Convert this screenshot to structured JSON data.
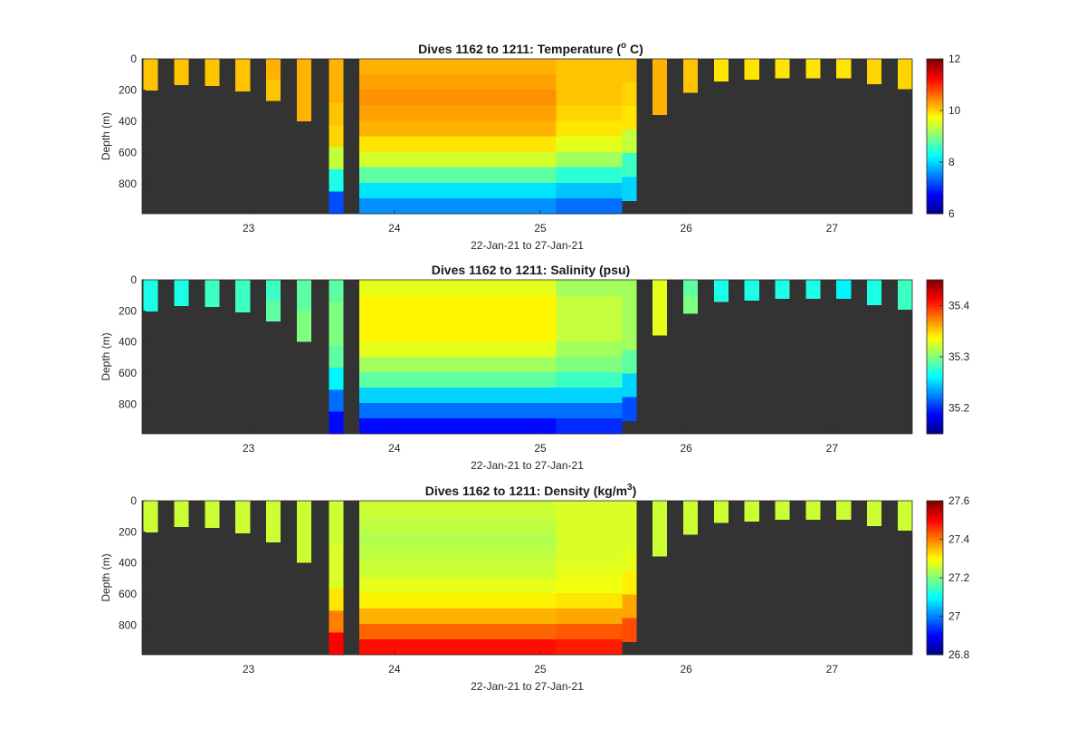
{
  "chart_data": [
    {
      "type": "heatmap",
      "title_main": "Dives 1162 to 1211: Temperature (",
      "title_sup": "o",
      "title_tail": " C)",
      "xlabel": "22-Jan-21 to 27-Jan-21",
      "ylabel": "Depth (m)",
      "xlim": [
        22.27,
        27.55
      ],
      "ylim": [
        0,
        990
      ],
      "y_reversed": true,
      "x_ticks": [
        23,
        24,
        25,
        26,
        27
      ],
      "y_ticks": [
        0,
        200,
        400,
        600,
        800
      ],
      "background": "#333333",
      "colormap": "jet",
      "clim": [
        6,
        12
      ],
      "colorbar_ticks": [
        6,
        8,
        10,
        12
      ],
      "columns": [
        {
          "x": [
            22.28,
            22.38
          ],
          "depth": 200,
          "v": [
            10.1,
            10.1
          ]
        },
        {
          "x": [
            22.49,
            22.59
          ],
          "depth": 165,
          "v": [
            10.1,
            10.1
          ]
        },
        {
          "x": [
            22.7,
            22.8
          ],
          "depth": 170,
          "v": [
            10.1,
            10.1
          ]
        },
        {
          "x": [
            22.91,
            23.01
          ],
          "depth": 205,
          "v": [
            10.1,
            10.1
          ]
        },
        {
          "x": [
            23.12,
            23.22
          ],
          "depth": 265,
          "v": [
            10.2,
            10.1
          ]
        },
        {
          "x": [
            23.33,
            23.43
          ],
          "depth": 395,
          "v": [
            10.2,
            10.2
          ]
        },
        {
          "x": [
            23.55,
            23.65
          ],
          "depth": 990,
          "v": [
            10.2,
            10.2,
            10.1,
            10.0,
            9.4,
            8.4,
            7.2
          ]
        },
        {
          "x": [
            23.76,
            25.11
          ],
          "depth": 990,
          "v": [
            10.2,
            10.3,
            10.4,
            10.3,
            10.2,
            9.9,
            9.5,
            8.8,
            8.1,
            7.6
          ]
        },
        {
          "x": [
            25.11,
            25.56
          ],
          "depth": 990,
          "v": [
            10.1,
            10.1,
            10.1,
            10.0,
            9.9,
            9.6,
            9.2,
            8.5,
            7.9,
            7.4
          ]
        },
        {
          "x": [
            25.56,
            25.66
          ],
          "depth": 905,
          "v": [
            10.1,
            10.0,
            9.9,
            9.4,
            8.6,
            8.0
          ]
        },
        {
          "x": [
            25.77,
            25.87
          ],
          "depth": 355,
          "v": [
            10.2,
            10.2
          ]
        },
        {
          "x": [
            25.98,
            26.08
          ],
          "depth": 215,
          "v": [
            10.1,
            10.1
          ]
        },
        {
          "x": [
            26.19,
            26.29
          ],
          "depth": 140,
          "v": [
            9.9,
            9.9
          ]
        },
        {
          "x": [
            26.4,
            26.5
          ],
          "depth": 130,
          "v": [
            9.9,
            9.9
          ]
        },
        {
          "x": [
            26.61,
            26.71
          ],
          "depth": 120,
          "v": [
            9.9,
            9.9
          ]
        },
        {
          "x": [
            26.82,
            26.92
          ],
          "depth": 120,
          "v": [
            9.9,
            9.9
          ]
        },
        {
          "x": [
            27.03,
            27.13
          ],
          "depth": 120,
          "v": [
            9.9,
            9.9
          ]
        },
        {
          "x": [
            27.24,
            27.34
          ],
          "depth": 160,
          "v": [
            10.0,
            10.0
          ]
        },
        {
          "x": [
            27.45,
            27.55
          ],
          "depth": 190,
          "v": [
            10.0,
            10.0
          ]
        }
      ]
    },
    {
      "type": "heatmap",
      "title_main": "Dives 1162 to 1211: Salinity (psu)",
      "title_sup": "",
      "title_tail": "",
      "xlabel": "22-Jan-21 to 27-Jan-21",
      "ylabel": "Depth (m)",
      "xlim": [
        22.27,
        27.55
      ],
      "ylim": [
        0,
        990
      ],
      "y_reversed": true,
      "x_ticks": [
        23,
        24,
        25,
        26,
        27
      ],
      "y_ticks": [
        0,
        200,
        400,
        600,
        800
      ],
      "background": "#333333",
      "colormap": "jet",
      "clim": [
        35.15,
        35.45
      ],
      "colorbar_ticks": [
        35.2,
        35.3,
        35.4
      ],
      "columns": [
        {
          "x": [
            22.28,
            22.38
          ],
          "depth": 200,
          "v": [
            35.27,
            35.27
          ]
        },
        {
          "x": [
            22.49,
            22.59
          ],
          "depth": 165,
          "v": [
            35.27,
            35.27
          ]
        },
        {
          "x": [
            22.7,
            22.8
          ],
          "depth": 170,
          "v": [
            35.28,
            35.28
          ]
        },
        {
          "x": [
            22.91,
            23.01
          ],
          "depth": 205,
          "v": [
            35.28,
            35.28
          ]
        },
        {
          "x": [
            23.12,
            23.22
          ],
          "depth": 265,
          "v": [
            35.28,
            35.29
          ]
        },
        {
          "x": [
            23.33,
            23.43
          ],
          "depth": 395,
          "v": [
            35.29,
            35.3
          ]
        },
        {
          "x": [
            23.55,
            23.65
          ],
          "depth": 990,
          "v": [
            35.29,
            35.3,
            35.3,
            35.29,
            35.26,
            35.22,
            35.19
          ]
        },
        {
          "x": [
            23.76,
            25.11
          ],
          "depth": 990,
          "v": [
            35.33,
            35.34,
            35.34,
            35.34,
            35.33,
            35.31,
            35.29,
            35.25,
            35.22,
            35.19
          ]
        },
        {
          "x": [
            25.11,
            25.56
          ],
          "depth": 990,
          "v": [
            35.31,
            35.32,
            35.32,
            35.32,
            35.31,
            35.3,
            35.28,
            35.25,
            35.22,
            35.2
          ]
        },
        {
          "x": [
            25.56,
            25.66
          ],
          "depth": 905,
          "v": [
            35.31,
            35.31,
            35.31,
            35.29,
            35.25,
            35.21
          ]
        },
        {
          "x": [
            25.77,
            25.87
          ],
          "depth": 355,
          "v": [
            35.33,
            35.33
          ]
        },
        {
          "x": [
            25.98,
            26.08
          ],
          "depth": 215,
          "v": [
            35.29,
            35.3
          ]
        },
        {
          "x": [
            26.19,
            26.29
          ],
          "depth": 140,
          "v": [
            35.27,
            35.27
          ]
        },
        {
          "x": [
            26.4,
            26.5
          ],
          "depth": 130,
          "v": [
            35.27,
            35.27
          ]
        },
        {
          "x": [
            26.61,
            26.71
          ],
          "depth": 120,
          "v": [
            35.27,
            35.27
          ]
        },
        {
          "x": [
            26.82,
            26.92
          ],
          "depth": 120,
          "v": [
            35.27,
            35.27
          ]
        },
        {
          "x": [
            27.03,
            27.13
          ],
          "depth": 120,
          "v": [
            35.26,
            35.26
          ]
        },
        {
          "x": [
            27.24,
            27.34
          ],
          "depth": 160,
          "v": [
            35.27,
            35.27
          ]
        },
        {
          "x": [
            27.45,
            27.55
          ],
          "depth": 190,
          "v": [
            35.28,
            35.28
          ]
        }
      ]
    },
    {
      "type": "heatmap",
      "title_main": "Dives 1162 to 1211: Density (kg/m",
      "title_sup": "3",
      "title_tail": ")",
      "xlabel": "22-Jan-21 to 27-Jan-21",
      "ylabel": "Depth (m)",
      "xlim": [
        22.27,
        27.55
      ],
      "ylim": [
        0,
        990
      ],
      "y_reversed": true,
      "x_ticks": [
        23,
        24,
        25,
        26,
        27
      ],
      "y_ticks": [
        0,
        200,
        400,
        600,
        800
      ],
      "background": "#333333",
      "colormap": "jet",
      "clim": [
        26.8,
        27.6
      ],
      "colorbar_ticks": [
        26.8,
        27,
        27.2,
        27.4,
        27.6
      ],
      "columns": [
        {
          "x": [
            22.28,
            22.38
          ],
          "depth": 200,
          "v": [
            27.26,
            27.26
          ]
        },
        {
          "x": [
            22.49,
            22.59
          ],
          "depth": 165,
          "v": [
            27.26,
            27.26
          ]
        },
        {
          "x": [
            22.7,
            22.8
          ],
          "depth": 170,
          "v": [
            27.26,
            27.26
          ]
        },
        {
          "x": [
            22.91,
            23.01
          ],
          "depth": 205,
          "v": [
            27.26,
            27.26
          ]
        },
        {
          "x": [
            23.12,
            23.22
          ],
          "depth": 265,
          "v": [
            27.26,
            27.26
          ]
        },
        {
          "x": [
            23.33,
            23.43
          ],
          "depth": 395,
          "v": [
            27.26,
            27.26
          ]
        },
        {
          "x": [
            23.55,
            23.65
          ],
          "depth": 990,
          "v": [
            27.26,
            27.26,
            27.27,
            27.27,
            27.32,
            27.4,
            27.5
          ]
        },
        {
          "x": [
            23.76,
            25.11
          ],
          "depth": 990,
          "v": [
            27.26,
            27.25,
            27.24,
            27.25,
            27.26,
            27.28,
            27.31,
            27.36,
            27.42,
            27.49
          ]
        },
        {
          "x": [
            25.11,
            25.56
          ],
          "depth": 990,
          "v": [
            27.27,
            27.27,
            27.27,
            27.27,
            27.28,
            27.29,
            27.32,
            27.37,
            27.43,
            27.48
          ]
        },
        {
          "x": [
            25.56,
            25.66
          ],
          "depth": 905,
          "v": [
            27.27,
            27.27,
            27.28,
            27.31,
            27.37,
            27.44
          ]
        },
        {
          "x": [
            25.77,
            25.87
          ],
          "depth": 355,
          "v": [
            27.26,
            27.26
          ]
        },
        {
          "x": [
            25.98,
            26.08
          ],
          "depth": 215,
          "v": [
            27.26,
            27.26
          ]
        },
        {
          "x": [
            26.19,
            26.29
          ],
          "depth": 140,
          "v": [
            27.26,
            27.26
          ]
        },
        {
          "x": [
            26.4,
            26.5
          ],
          "depth": 130,
          "v": [
            27.26,
            27.26
          ]
        },
        {
          "x": [
            26.61,
            26.71
          ],
          "depth": 120,
          "v": [
            27.26,
            27.26
          ]
        },
        {
          "x": [
            26.82,
            26.92
          ],
          "depth": 120,
          "v": [
            27.26,
            27.26
          ]
        },
        {
          "x": [
            27.03,
            27.13
          ],
          "depth": 120,
          "v": [
            27.26,
            27.26
          ]
        },
        {
          "x": [
            27.24,
            27.34
          ],
          "depth": 160,
          "v": [
            27.26,
            27.26
          ]
        },
        {
          "x": [
            27.45,
            27.55
          ],
          "depth": 190,
          "v": [
            27.26,
            27.26
          ]
        }
      ]
    }
  ]
}
